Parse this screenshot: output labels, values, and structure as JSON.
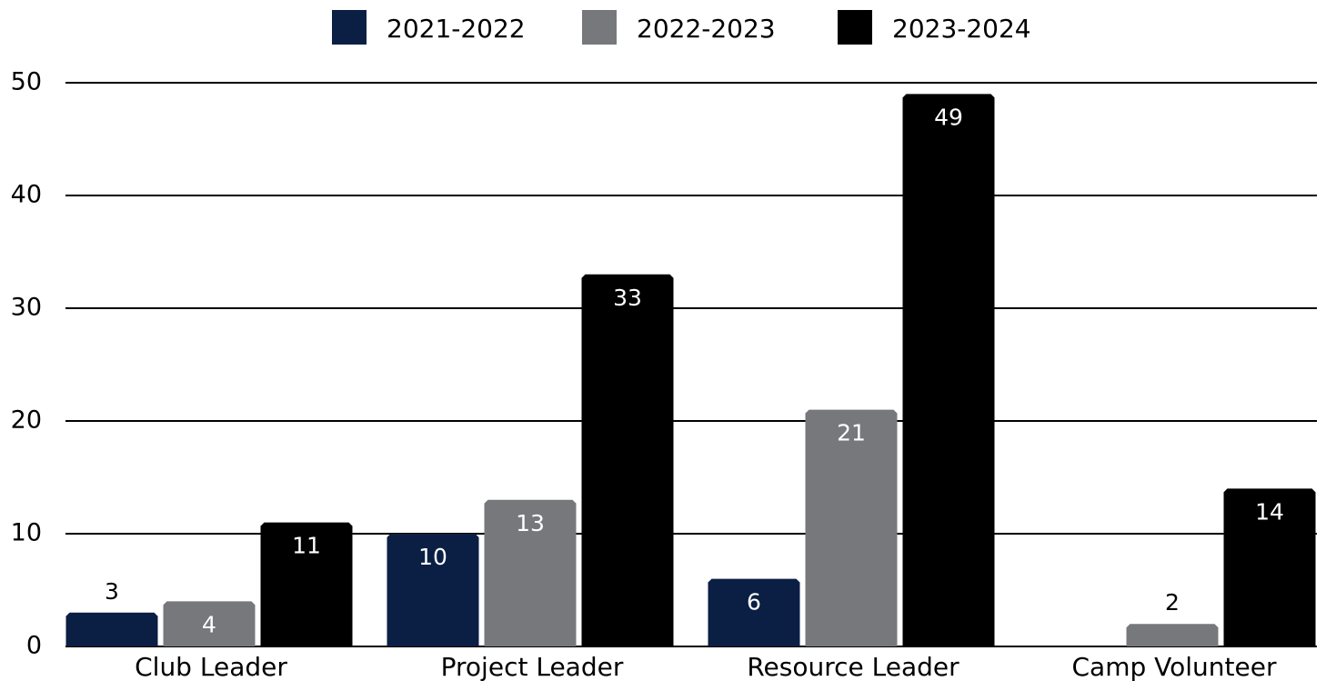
{
  "chart_data": {
    "type": "bar",
    "categories": [
      "Club Leader",
      "Project Leader",
      "Resource Leader",
      "Camp Volunteer"
    ],
    "series": [
      {
        "name": "2021-2022",
        "color": "#0b1f44",
        "values": [
          3,
          10,
          6,
          null
        ]
      },
      {
        "name": "2022-2023",
        "color": "#77787b",
        "values": [
          4,
          13,
          21,
          2
        ]
      },
      {
        "name": "2023-2024",
        "color": "#000000",
        "values": [
          11,
          33,
          49,
          14
        ]
      }
    ],
    "ylim": [
      0,
      50
    ],
    "yticks": [
      0,
      10,
      20,
      30,
      40,
      50
    ],
    "grid": true,
    "legend": "top"
  }
}
